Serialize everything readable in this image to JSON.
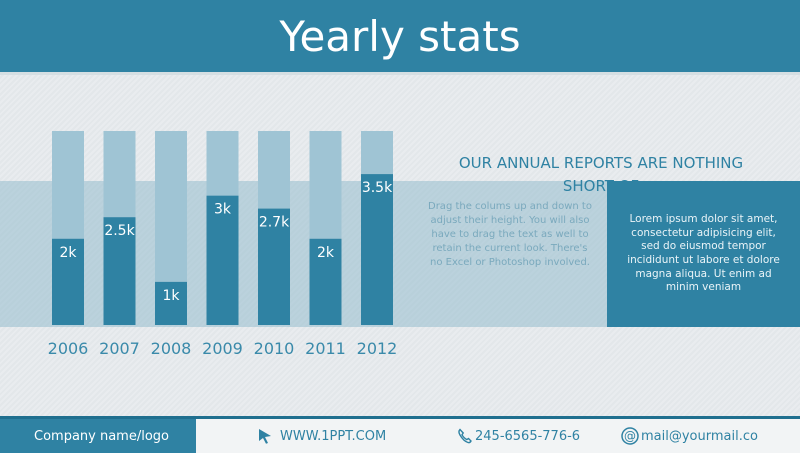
{
  "header": {
    "title": "Yearly stats"
  },
  "reports": {
    "title_line1": "OUR ANNUAL REPORTS ARE NOTHING",
    "title_line2": "SHORT OF",
    "middle_text": "Drag the colums up and down to adjust their height. You will also have to drag the text as well to retain the current look. There's no Excel or Photoshop involved.",
    "right_text": "Lorem ipsum dolor sit amet, consectetur adipisicing elit, sed do eiusmod tempor incididunt ut labore et dolore magna aliqua. Ut enim ad minim veniam"
  },
  "footer": {
    "company": "Company name/logo",
    "website": "WWW.1PPT.COM",
    "phone": "245-6565-776-6",
    "email": "mail@yourmail.co"
  },
  "colors": {
    "primary": "#2f82a3",
    "bar_bg": "#9fc4d4",
    "year_label": "#3a8aaa"
  },
  "chart_data": {
    "type": "bar",
    "categories": [
      "2006",
      "2007",
      "2008",
      "2009",
      "2010",
      "2011",
      "2012"
    ],
    "values": [
      2,
      2.5,
      1,
      3,
      2.7,
      2,
      3.5
    ],
    "labels": [
      "2k",
      "2.5k",
      "1k",
      "3k",
      "2.7k",
      "2k",
      "3.5k"
    ],
    "ylim": [
      0,
      4.5
    ],
    "grid": false
  }
}
